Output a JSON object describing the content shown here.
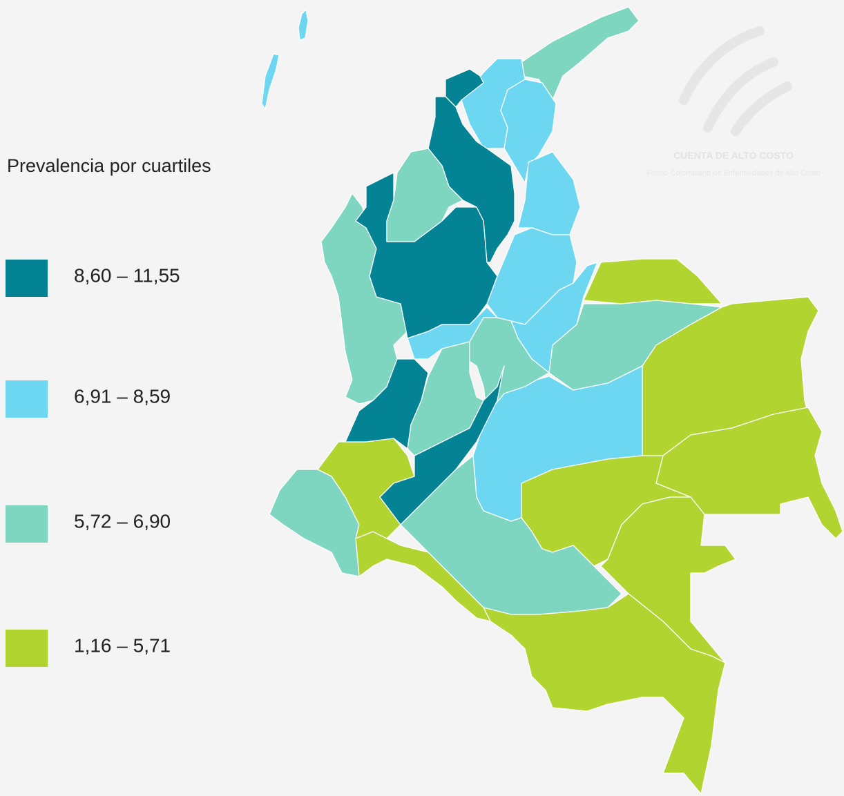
{
  "title": "Prevalencia por cuartiles",
  "legend": {
    "items": [
      {
        "label": "8,60 – 11,55",
        "color": "#038394"
      },
      {
        "label": "6,91 – 8,59",
        "color": "#6dd6f1"
      },
      {
        "label": "5,72 – 6,90",
        "color": "#7ed6c1"
      },
      {
        "label": "1,16 – 5,71",
        "color": "#b1d430"
      }
    ]
  },
  "watermark": {
    "name": "CUENTA DE ALTO COSTO",
    "subtitle": "Fondo Colombiano de Enfermedades de Alto Costo"
  }
}
